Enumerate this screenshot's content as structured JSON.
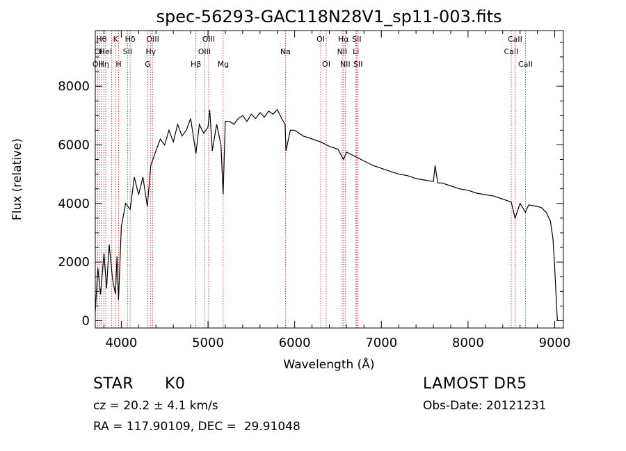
{
  "chart_data": {
    "type": "line",
    "title": "spec-56293-GAC118N28V1_sp11-003.fits",
    "xlabel": "Wavelength (Å)",
    "ylabel": "Flux (relative)",
    "xlim": [
      3700,
      9100
    ],
    "ylim": [
      -250,
      9900
    ],
    "xticks": [
      4000,
      5000,
      6000,
      7000,
      8000,
      9000
    ],
    "yticks": [
      0,
      2000,
      4000,
      6000,
      8000
    ],
    "grid": false,
    "line_color": "#000000",
    "marker_color": "#b22222",
    "series": [
      {
        "x": [
          3700,
          3730,
          3760,
          3800,
          3830,
          3860,
          3900,
          3933,
          3950,
          3968,
          4000,
          4050,
          4102,
          4150,
          4200,
          4250,
          4300,
          4340,
          4400,
          4450,
          4500,
          4550,
          4600,
          4650,
          4700,
          4750,
          4800,
          4861,
          4900,
          4950,
          5000,
          5020,
          5050,
          5100,
          5150,
          5175,
          5200,
          5250,
          5300,
          5350,
          5400,
          5450,
          5500,
          5550,
          5600,
          5650,
          5700,
          5750,
          5800,
          5850,
          5890,
          5900,
          5950,
          6000,
          6100,
          6200,
          6300,
          6400,
          6500,
          6563,
          6600,
          6700,
          6800,
          6900,
          7000,
          7100,
          7200,
          7300,
          7400,
          7500,
          7600,
          7620,
          7650,
          7700,
          7800,
          7900,
          8000,
          8100,
          8200,
          8300,
          8400,
          8498,
          8542,
          8600,
          8662,
          8700,
          8800,
          8850,
          8900,
          8950,
          8980,
          9000,
          9030
        ],
        "y": [
          300,
          1800,
          900,
          2300,
          1100,
          2600,
          1400,
          900,
          2200,
          700,
          3200,
          4000,
          3800,
          4900,
          4300,
          4900,
          3900,
          5300,
          5800,
          6200,
          6000,
          6500,
          6100,
          6700,
          6300,
          6500,
          6900,
          5700,
          6700,
          6400,
          6600,
          7200,
          5800,
          6700,
          6000,
          4300,
          6800,
          6800,
          6700,
          6900,
          7000,
          6800,
          7050,
          6900,
          7100,
          6950,
          7150,
          7050,
          7200,
          6900,
          6700,
          5800,
          6500,
          6500,
          6300,
          6200,
          6100,
          5950,
          5850,
          5500,
          5750,
          5600,
          5450,
          5300,
          5200,
          5100,
          5000,
          4950,
          4850,
          4800,
          4750,
          5300,
          4700,
          4700,
          4600,
          4500,
          4450,
          4350,
          4300,
          4250,
          4150,
          4050,
          3500,
          4000,
          3700,
          3950,
          3900,
          3850,
          3700,
          3400,
          2800,
          1800,
          0
        ]
      }
    ],
    "lines": [
      {
        "wl": 3727,
        "label": "OII",
        "row": 2
      },
      {
        "wl": 3750,
        "label": "OII",
        "row": 1
      },
      {
        "wl": 3771,
        "label": "Hθ",
        "row": 0
      },
      {
        "wl": 3798,
        "label": "Hη",
        "row": 2
      },
      {
        "wl": 3820,
        "label": "HeI",
        "row": 1
      },
      {
        "wl": 3889,
        "label": "",
        "row": 0
      },
      {
        "wl": 3934,
        "label": "K",
        "row": 0
      },
      {
        "wl": 3969,
        "label": "H",
        "row": 2
      },
      {
        "wl": 4072,
        "label": "SII",
        "row": 1
      },
      {
        "wl": 4102,
        "label": "Hδ",
        "row": 0
      },
      {
        "wl": 4305,
        "label": "G",
        "row": 2
      },
      {
        "wl": 4340,
        "label": "Hγ",
        "row": 1
      },
      {
        "wl": 4363,
        "label": "OIII",
        "row": 0
      },
      {
        "wl": 4861,
        "label": "Hβ",
        "row": 2
      },
      {
        "wl": 4959,
        "label": "OIII",
        "row": 1
      },
      {
        "wl": 5007,
        "label": "OIII",
        "row": 0
      },
      {
        "wl": 5175,
        "label": "Mg",
        "row": 2
      },
      {
        "wl": 5894,
        "label": "Na",
        "row": 1
      },
      {
        "wl": 6300,
        "label": "OI",
        "row": 0
      },
      {
        "wl": 6364,
        "label": "OI",
        "row": 2
      },
      {
        "wl": 6548,
        "label": "NII",
        "row": 1
      },
      {
        "wl": 6563,
        "label": "Hα",
        "row": 0
      },
      {
        "wl": 6583,
        "label": "NII",
        "row": 2
      },
      {
        "wl": 6707,
        "label": "Li",
        "row": 1
      },
      {
        "wl": 6716,
        "label": "SII",
        "row": 0
      },
      {
        "wl": 6731,
        "label": "SII",
        "row": 2
      },
      {
        "wl": 8498,
        "label": "CaII",
        "row": 1
      },
      {
        "wl": 8542,
        "label": "CaII",
        "row": 0
      },
      {
        "wl": 8662,
        "label": "CaII",
        "row": 2
      }
    ]
  },
  "info": {
    "object_type": "STAR",
    "subclass": "K0",
    "survey": "LAMOST DR5",
    "redshift": "cz = 20.2 ± 4.1 km/s",
    "obs_date": "Obs-Date: 20121231",
    "coords": "RA = 117.90109, DEC =  29.91048"
  }
}
